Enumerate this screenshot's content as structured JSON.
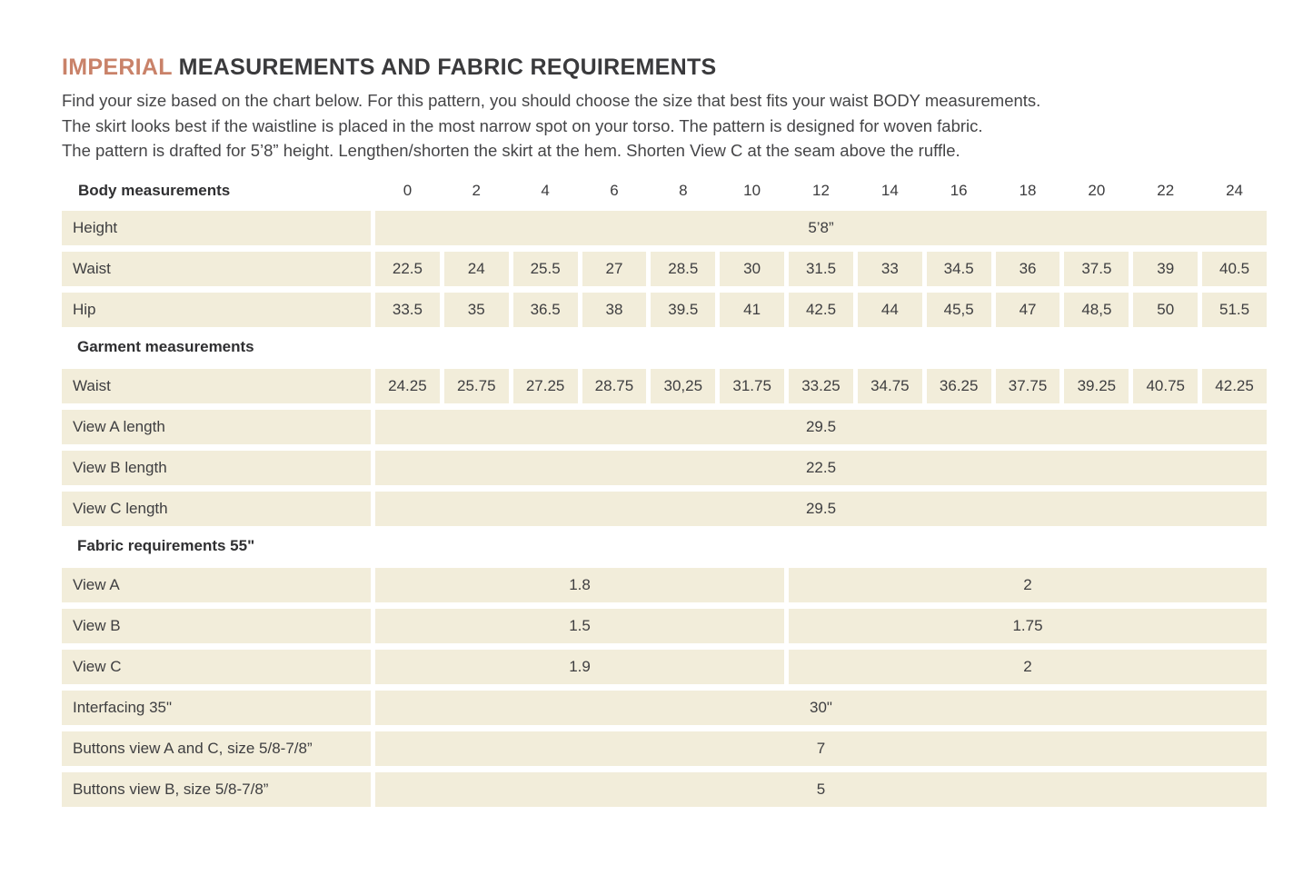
{
  "page": {
    "title_highlight": "IMPERIAL",
    "title_rest": " MEASUREMENTS AND FABRIC REQUIREMENTS",
    "intro_lines": [
      "Find your size based on the chart below. For this pattern, you should choose the size that best fits your waist BODY measurements.",
      "The skirt looks best if the waistline is placed in the most narrow spot on your torso. The pattern is designed for woven fabric.",
      "The pattern is drafted for 5’8” height. Lengthen/shorten the skirt at the hem. Shorten View C at the seam above the ruffle."
    ]
  },
  "colors": {
    "accent": "#c98269",
    "cell_background": "#f2edda",
    "text": "#3e3e40"
  },
  "table": {
    "header_label": "Body measurements",
    "sizes": [
      "0",
      "2",
      "4",
      "6",
      "8",
      "10",
      "12",
      "14",
      "16",
      "18",
      "20",
      "22",
      "24"
    ],
    "rows": [
      {
        "kind": "merged",
        "label": "Height",
        "value": "5’8”"
      },
      {
        "kind": "cells",
        "label": "Waist",
        "values": [
          "22.5",
          "24",
          "25.5",
          "27",
          "28.5",
          "30",
          "31.5",
          "33",
          "34.5",
          "36",
          "37.5",
          "39",
          "40.5"
        ]
      },
      {
        "kind": "cells",
        "label": "Hip",
        "values": [
          "33.5",
          "35",
          "36.5",
          "38",
          "39.5",
          "41",
          "42.5",
          "44",
          "45,5",
          "47",
          "48,5",
          "50",
          "51.5"
        ]
      },
      {
        "kind": "section",
        "label": "Garment measurements"
      },
      {
        "kind": "cells",
        "label": "Waist",
        "values": [
          "24.25",
          "25.75",
          "27.25",
          "28.75",
          "30,25",
          "31.75",
          "33.25",
          "34.75",
          "36.25",
          "37.75",
          "39.25",
          "40.75",
          "42.25"
        ]
      },
      {
        "kind": "merged",
        "label": "View A length",
        "value": "29.5"
      },
      {
        "kind": "merged",
        "label": "View B length",
        "value": "22.5"
      },
      {
        "kind": "merged",
        "label": "View C length",
        "value": "29.5"
      },
      {
        "kind": "section",
        "label": "Fabric requirements 55\""
      },
      {
        "kind": "split",
        "label": "View A",
        "values": [
          "1.8",
          "2"
        ]
      },
      {
        "kind": "split",
        "label": "View B",
        "values": [
          "1.5",
          "1.75"
        ]
      },
      {
        "kind": "split",
        "label": "View C",
        "values": [
          "1.9",
          "2"
        ]
      },
      {
        "kind": "merged",
        "label": "Interfacing 35\"",
        "value": "30\""
      },
      {
        "kind": "merged",
        "label": "Buttons view A and C, size 5/8-7/8”",
        "value": "7"
      },
      {
        "kind": "merged",
        "label": "Buttons view B, size 5/8-7/8”",
        "value": "5"
      }
    ]
  }
}
